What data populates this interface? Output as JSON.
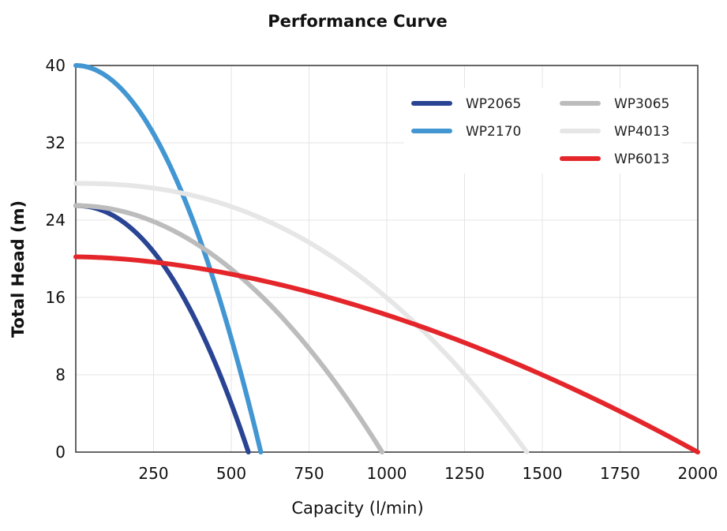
{
  "chart_data": {
    "type": "line",
    "title": "Performance Curve",
    "xlabel": "Capacity (l/min)",
    "ylabel": "Total Head (m)",
    "xlim": [
      0,
      2000
    ],
    "ylim": [
      0,
      40
    ],
    "xticks": [
      250,
      500,
      750,
      1000,
      1250,
      1500,
      1750,
      2000
    ],
    "yticks": [
      0,
      8,
      16,
      24,
      32,
      40
    ],
    "grid": true,
    "legend_position": "top-right",
    "series": [
      {
        "name": "WP2065",
        "color": "#2a4494",
        "shutoff_head": 25.5,
        "max_capacity": 555,
        "curve_exponent": 2.1
      },
      {
        "name": "WP2170",
        "color": "#4296d2",
        "shutoff_head": 40,
        "max_capacity": 595,
        "curve_exponent": 2.0
      },
      {
        "name": "WP3065",
        "color": "#bcbcbc",
        "shutoff_head": 25.5,
        "max_capacity": 985,
        "curve_exponent": 2.0
      },
      {
        "name": "WP4013",
        "color": "#e6e6e6",
        "shutoff_head": 27.8,
        "max_capacity": 1450,
        "curve_exponent": 2.3
      },
      {
        "name": "WP6013",
        "color": "#e4262b",
        "shutoff_head": 20.2,
        "max_capacity": 2000,
        "curve_exponent": 1.75
      }
    ]
  }
}
